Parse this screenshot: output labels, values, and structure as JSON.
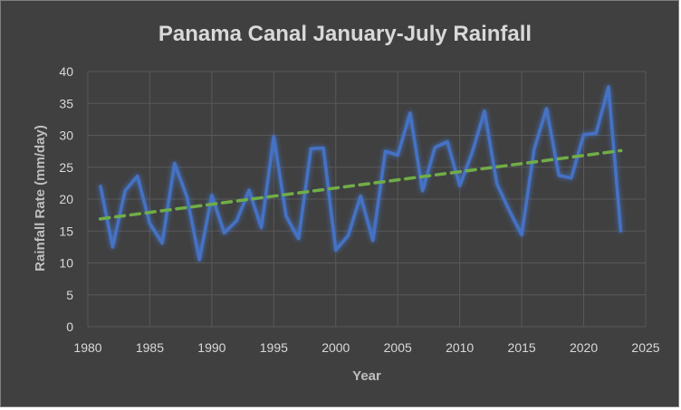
{
  "chart_data": {
    "type": "line",
    "title": "Panama Canal January-July Rainfall",
    "xlabel": "Year",
    "ylabel": "Rainfall Rate (mm/day)",
    "xlim": [
      1980,
      2025
    ],
    "ylim": [
      0,
      40
    ],
    "x_ticks": [
      1980,
      1985,
      1990,
      1995,
      2000,
      2005,
      2010,
      2015,
      2020,
      2025
    ],
    "y_ticks": [
      0,
      5,
      10,
      15,
      20,
      25,
      30,
      35,
      40
    ],
    "grid": true,
    "legend": "none",
    "series": [
      {
        "color": "#4472c4",
        "x": [
          1981,
          1982,
          1983,
          1984,
          1985,
          1986,
          1987,
          1988,
          1989,
          1990,
          1991,
          1992,
          1993,
          1994,
          1995,
          1996,
          1997,
          1998,
          1999,
          2000,
          2001,
          2002,
          2003,
          2004,
          2005,
          2006,
          2007,
          2008,
          2009,
          2010,
          2011,
          2012,
          2013,
          2014,
          2015,
          2016,
          2017,
          2018,
          2019,
          2020,
          2021,
          2022,
          2023
        ],
        "values": [
          22.2,
          12.5,
          21.3,
          23.6,
          16.2,
          13.1,
          25.6,
          20.3,
          10.5,
          20.6,
          14.7,
          16.6,
          21.4,
          15.5,
          29.8,
          17.3,
          13.8,
          27.9,
          28.0,
          12.0,
          14.3,
          20.5,
          13.5,
          27.5,
          26.9,
          33.5,
          21.3,
          28.1,
          29.0,
          22.1,
          27.3,
          33.8,
          22.4,
          18.2,
          14.4,
          27.8,
          34.2,
          23.7,
          23.3,
          30.1,
          30.3,
          37.6,
          14.8
        ]
      }
    ],
    "trendline": {
      "style": "dashed",
      "color": "#70ad47",
      "x": [
        1981,
        2023
      ],
      "values": [
        16.9,
        27.6
      ]
    }
  }
}
